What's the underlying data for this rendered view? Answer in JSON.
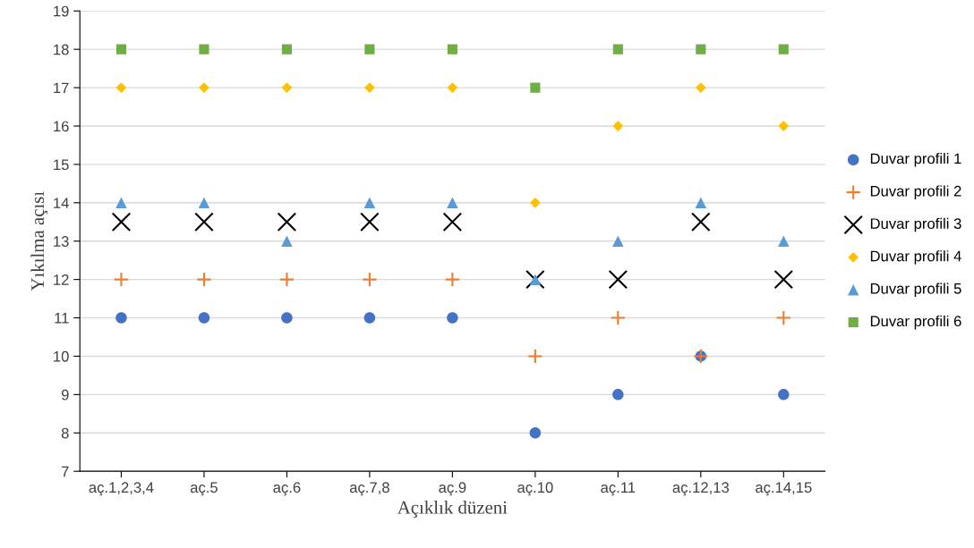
{
  "chart_data": {
    "type": "scatter",
    "xlabel": "Açıklık düzeni",
    "ylabel": "Yıkılma açısı",
    "categories": [
      "aç.1,2,3,4",
      "aç.5",
      "aç.6",
      "aç.7,8",
      "aç.9",
      "aç.10",
      "aç.11",
      "aç.12,13",
      "aç.14,15"
    ],
    "series": [
      {
        "name": "Duvar profili 1",
        "color": "#4472c4",
        "marker": "circle",
        "values": [
          11,
          11,
          11,
          11,
          11,
          8,
          9,
          10,
          9
        ]
      },
      {
        "name": "Duvar profili 2",
        "color": "#ed7d31",
        "marker": "plus",
        "values": [
          12,
          12,
          12,
          12,
          12,
          10,
          11,
          10,
          11
        ]
      },
      {
        "name": "Duvar profili 3",
        "color": "#000000",
        "marker": "cross",
        "values": [
          13.5,
          13.5,
          13.5,
          13.5,
          13.5,
          12,
          12,
          13.5,
          12
        ]
      },
      {
        "name": "Duvar profili 4",
        "color": "#ffc000",
        "marker": "diamond",
        "values": [
          17,
          17,
          17,
          17,
          17,
          14,
          16,
          17,
          16
        ]
      },
      {
        "name": "Duvar profili 5",
        "color": "#5b9bd5",
        "marker": "triangle",
        "values": [
          14,
          14,
          13,
          14,
          14,
          12,
          13,
          14,
          13
        ]
      },
      {
        "name": "Duvar profili 6",
        "color": "#70ad47",
        "marker": "square",
        "values": [
          18,
          18,
          18,
          18,
          18,
          17,
          18,
          18,
          18
        ]
      }
    ],
    "ylim": [
      7,
      19
    ],
    "yticks": [
      7,
      8,
      9,
      10,
      11,
      12,
      13,
      14,
      15,
      16,
      17,
      18,
      19
    ],
    "grid": "y",
    "legend": "right"
  }
}
